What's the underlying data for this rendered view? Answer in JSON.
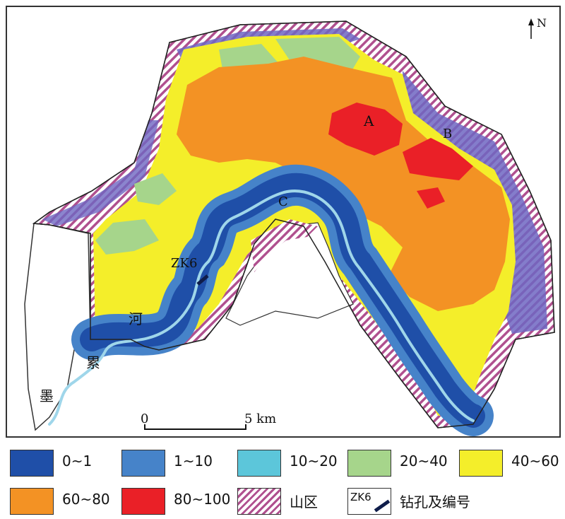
{
  "map": {
    "north_label": "N",
    "labels": {
      "A": "A",
      "B": "B",
      "C": "C",
      "borehole": "ZK6",
      "river_1": "河",
      "river_2": "累",
      "river_3": "墨"
    },
    "scale": {
      "start": "0",
      "end": "5 km"
    }
  },
  "legend": {
    "items": [
      {
        "label": "0~1",
        "color": "#1f4fa8"
      },
      {
        "label": "1~10",
        "color": "#4683c9"
      },
      {
        "label": "10~20",
        "color": "#5cc6da"
      },
      {
        "label": "20~40",
        "color": "#a6d58b"
      },
      {
        "label": "40~60",
        "color": "#f4ee2a"
      },
      {
        "label": "60~80",
        "color": "#f39224"
      },
      {
        "label": "80~100",
        "color": "#ea2027"
      },
      {
        "label": "山区",
        "color": "hatch"
      },
      {
        "label": "钻孔及编号",
        "color": "borehole",
        "swatch_text": "ZK6"
      }
    ]
  },
  "colors": {
    "blue_dark": "#1f4fa8",
    "blue_mid": "#4683c9",
    "cyan": "#5cc6da",
    "green": "#a6d58b",
    "yellow": "#f4ee2a",
    "orange": "#f39224",
    "red": "#ea2027",
    "mountain": "#b0508f",
    "mountain_outer": "#6e66c2"
  }
}
